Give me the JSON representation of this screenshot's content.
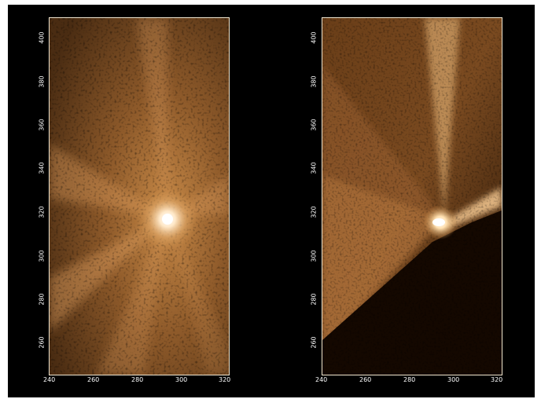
{
  "panels": [
    {
      "id": "left",
      "x_ticks": [
        "240",
        "260",
        "280",
        "300",
        "320"
      ],
      "y_ticks": [
        "400",
        "380",
        "360",
        "340",
        "320",
        "300",
        "280",
        "260"
      ]
    },
    {
      "id": "right",
      "x_ticks": [
        "240",
        "260",
        "280",
        "300",
        "320"
      ],
      "y_ticks": [
        "400",
        "380",
        "360",
        "340",
        "320",
        "300",
        "280",
        "260"
      ]
    }
  ],
  "colors": {
    "background": "#000000",
    "frame": "#f0e6d0",
    "glow": "#c98a45",
    "core": "#ffffff"
  }
}
